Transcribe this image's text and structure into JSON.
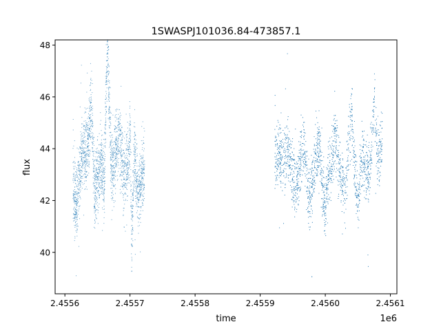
{
  "chart_data": {
    "type": "scatter",
    "title": "1SWASPJ101036.84-473857.1",
    "xlabel": "time",
    "ylabel": "flux",
    "x_offset_label": "1e6",
    "xlim": [
      2455585,
      2456110
    ],
    "ylim": [
      38.4,
      48.2
    ],
    "x_ticks": [
      {
        "value": 2455600,
        "label": "2.4556"
      },
      {
        "value": 2455700,
        "label": "2.4557"
      },
      {
        "value": 2455800,
        "label": "2.4558"
      },
      {
        "value": 2455900,
        "label": "2.4559"
      },
      {
        "value": 2456000,
        "label": "2.4560"
      },
      {
        "value": 2456100,
        "label": "2.4561"
      }
    ],
    "y_ticks": [
      {
        "value": 40,
        "label": "40"
      },
      {
        "value": 42,
        "label": "42"
      },
      {
        "value": 44,
        "label": "44"
      },
      {
        "value": 46,
        "label": "46"
      },
      {
        "value": 48,
        "label": "48"
      }
    ],
    "grid": false,
    "legend": "none",
    "marker_color": "#1f77b4",
    "series": [
      {
        "segments": [
          {
            "x_start": 2455612,
            "x_end": 2455722,
            "flux_mean": 43.2,
            "flux_spread": 0.7
          },
          {
            "x_start": 2455922,
            "x_end": 2456087,
            "flux_mean": 43.3,
            "flux_spread": 0.6
          }
        ],
        "sample_points": [
          [
            2455612,
            42.8
          ],
          [
            2455615,
            42.0
          ],
          [
            2455618,
            41.9
          ],
          [
            2455625,
            43.6
          ],
          [
            2455628,
            44.0
          ],
          [
            2455635,
            44.1
          ],
          [
            2455640,
            45.8
          ],
          [
            2455645,
            42.3
          ],
          [
            2455650,
            42.9
          ],
          [
            2455655,
            43.6
          ],
          [
            2455660,
            42.4
          ],
          [
            2455663,
            46.5
          ],
          [
            2455665,
            47.8
          ],
          [
            2455668,
            45.2
          ],
          [
            2455672,
            43.0
          ],
          [
            2455678,
            44.0
          ],
          [
            2455684,
            44.5
          ],
          [
            2455690,
            42.7
          ],
          [
            2455695,
            43.4
          ],
          [
            2455700,
            44.5
          ],
          [
            2455702,
            40.3
          ],
          [
            2455706,
            43.8
          ],
          [
            2455712,
            42.3
          ],
          [
            2455716,
            42.7
          ],
          [
            2455721,
            43.2
          ],
          [
            2455922,
            43.7
          ],
          [
            2455928,
            43.9
          ],
          [
            2455935,
            43.4
          ],
          [
            2455942,
            44.0
          ],
          [
            2455948,
            43.2
          ],
          [
            2455955,
            42.5
          ],
          [
            2455962,
            43.7
          ],
          [
            2455968,
            43.9
          ],
          [
            2455975,
            41.9
          ],
          [
            2455980,
            42.8
          ],
          [
            2455985,
            43.8
          ],
          [
            2455990,
            44.2
          ],
          [
            2455995,
            42.6
          ],
          [
            2456000,
            41.8
          ],
          [
            2456005,
            43.0
          ],
          [
            2456010,
            43.6
          ],
          [
            2456015,
            44.5
          ],
          [
            2456020,
            43.5
          ],
          [
            2456025,
            42.8
          ],
          [
            2456030,
            42.4
          ],
          [
            2456035,
            44.0
          ],
          [
            2456040,
            45.3
          ],
          [
            2456045,
            43.0
          ],
          [
            2456050,
            42.1
          ],
          [
            2456055,
            43.5
          ],
          [
            2456060,
            43.4
          ],
          [
            2456065,
            42.8
          ],
          [
            2456070,
            43.9
          ],
          [
            2456075,
            46.0
          ],
          [
            2456080,
            43.5
          ],
          [
            2456086,
            44.1
          ]
        ]
      }
    ]
  }
}
